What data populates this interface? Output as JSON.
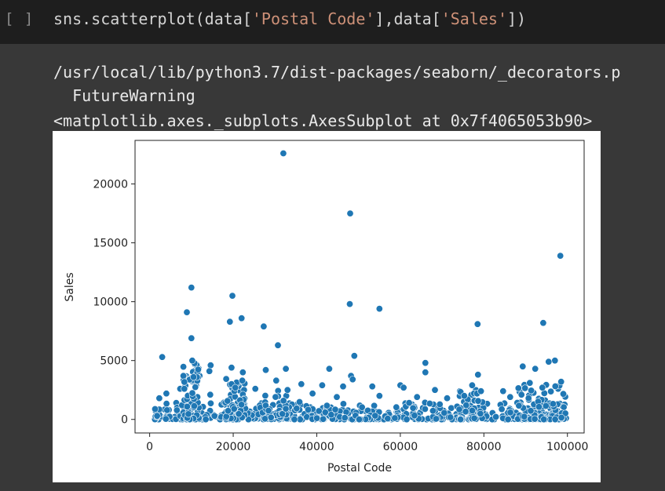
{
  "cell": {
    "run_label": "[ ]",
    "code": {
      "prefix": "sns.scatterplot(data[",
      "arg1": "'Postal Code'",
      "mid": "],data[",
      "arg2": "'Sales'",
      "suffix": "])"
    }
  },
  "output": {
    "warning_path": "/usr/local/lib/python3.7/dist-packages/seaborn/_decorators.p",
    "warning_name": "  FutureWarning",
    "repr": "<matplotlib.axes._subplots.AxesSubplot at 0x7f4065053b90>"
  },
  "colors": {
    "point": "#1f77b4",
    "background": "#383838",
    "input_bg": "#1e1e1e",
    "string": "#ce9178"
  },
  "chart_data": {
    "type": "scatter",
    "xlabel": "Postal Code",
    "ylabel": "Sales",
    "xlim": [
      -3500,
      104000
    ],
    "ylim": [
      -1150,
      23700
    ],
    "xticks": [
      0,
      20000,
      40000,
      60000,
      80000,
      100000
    ],
    "yticks": [
      0,
      5000,
      10000,
      15000,
      20000
    ],
    "xtick_labels": [
      "0",
      "20000",
      "40000",
      "60000",
      "80000",
      "100000"
    ],
    "ytick_labels": [
      "0",
      "5000",
      "10000",
      "15000",
      "20000"
    ],
    "grid": false,
    "points": [
      {
        "x": 32000,
        "y": 22600
      },
      {
        "x": 48000,
        "y": 17500
      },
      {
        "x": 98300,
        "y": 13900
      },
      {
        "x": 10000,
        "y": 11200
      },
      {
        "x": 19800,
        "y": 10500
      },
      {
        "x": 47900,
        "y": 9800
      },
      {
        "x": 55000,
        "y": 9400
      },
      {
        "x": 8900,
        "y": 9100
      },
      {
        "x": 22000,
        "y": 8600
      },
      {
        "x": 19200,
        "y": 8300
      },
      {
        "x": 94200,
        "y": 8200
      },
      {
        "x": 78500,
        "y": 8100
      },
      {
        "x": 27300,
        "y": 7900
      },
      {
        "x": 10000,
        "y": 6900
      },
      {
        "x": 30700,
        "y": 6300
      },
      {
        "x": 49000,
        "y": 5400
      },
      {
        "x": 3000,
        "y": 5300
      },
      {
        "x": 10200,
        "y": 5000
      },
      {
        "x": 97000,
        "y": 5000
      },
      {
        "x": 95500,
        "y": 4900
      },
      {
        "x": 66000,
        "y": 4800
      },
      {
        "x": 14600,
        "y": 4600
      },
      {
        "x": 89300,
        "y": 4500
      },
      {
        "x": 19600,
        "y": 4400
      },
      {
        "x": 43000,
        "y": 4300
      },
      {
        "x": 32600,
        "y": 4300
      },
      {
        "x": 27800,
        "y": 4200
      },
      {
        "x": 92300,
        "y": 4300
      },
      {
        "x": 22300,
        "y": 4000
      },
      {
        "x": 14300,
        "y": 4100
      },
      {
        "x": 66000,
        "y": 4000
      },
      {
        "x": 78600,
        "y": 3800
      },
      {
        "x": 48200,
        "y": 3700
      },
      {
        "x": 10500,
        "y": 3600
      },
      {
        "x": 48600,
        "y": 3400
      },
      {
        "x": 30300,
        "y": 3300
      },
      {
        "x": 98500,
        "y": 3200
      },
      {
        "x": 91000,
        "y": 3100
      },
      {
        "x": 19600,
        "y": 3000
      },
      {
        "x": 36300,
        "y": 3000
      },
      {
        "x": 60000,
        "y": 2900
      },
      {
        "x": 77200,
        "y": 2900
      },
      {
        "x": 41300,
        "y": 2900
      },
      {
        "x": 46300,
        "y": 2800
      },
      {
        "x": 53300,
        "y": 2800
      },
      {
        "x": 20500,
        "y": 2700
      },
      {
        "x": 7300,
        "y": 2600
      },
      {
        "x": 8300,
        "y": 2600
      },
      {
        "x": 60800,
        "y": 2700
      },
      {
        "x": 94000,
        "y": 2700
      },
      {
        "x": 25300,
        "y": 2600
      },
      {
        "x": 33000,
        "y": 2500
      },
      {
        "x": 68300,
        "y": 2500
      },
      {
        "x": 79300,
        "y": 2400
      },
      {
        "x": 84600,
        "y": 2400
      },
      {
        "x": 4000,
        "y": 2200
      },
      {
        "x": 14500,
        "y": 2100
      },
      {
        "x": 55000,
        "y": 2000
      },
      {
        "x": 75300,
        "y": 2000
      },
      {
        "x": 39000,
        "y": 2200
      },
      {
        "x": 89000,
        "y": 2100
      },
      {
        "x": 64000,
        "y": 1900
      },
      {
        "x": 86300,
        "y": 1900
      },
      {
        "x": 2300,
        "y": 1800
      },
      {
        "x": 44800,
        "y": 1900
      },
      {
        "x": 71200,
        "y": 1800
      }
    ],
    "dense_bands": [
      {
        "x0": 1000,
        "x1": 100000,
        "ymax": 1500,
        "count": 520
      },
      {
        "x0": 8000,
        "x1": 12000,
        "ymax": 4800,
        "count": 70
      },
      {
        "x0": 18000,
        "x1": 23000,
        "ymax": 3500,
        "count": 60
      },
      {
        "x0": 88000,
        "x1": 99500,
        "ymax": 3200,
        "count": 80
      },
      {
        "x0": 74000,
        "x1": 80000,
        "ymax": 2500,
        "count": 40
      },
      {
        "x0": 27000,
        "x1": 33000,
        "ymax": 2600,
        "count": 35
      }
    ]
  }
}
